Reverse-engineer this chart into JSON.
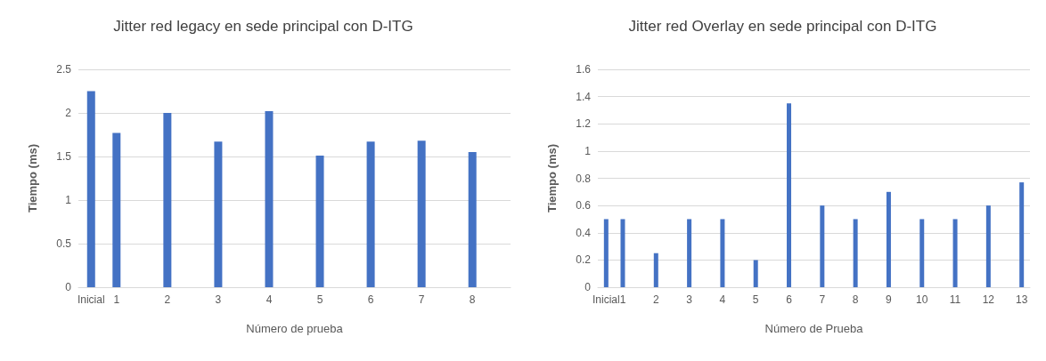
{
  "chart_data": [
    {
      "type": "bar",
      "title": "Jitter red legacy en sede principal con D-ITG",
      "xlabel": "Número de prueba",
      "ylabel": "Tiempo (ms)",
      "x": [
        0.5,
        1,
        2,
        3,
        4,
        5,
        6,
        7,
        8
      ],
      "xlim": [
        0.25,
        8.75
      ],
      "xticks": [
        {
          "value": 0.5,
          "label": "Inicial"
        },
        1,
        2,
        3,
        4,
        5,
        6,
        7,
        8
      ],
      "series": [
        {
          "color": "#4472c4",
          "values": [
            2.25,
            1.77,
            2.0,
            1.67,
            2.02,
            1.51,
            1.67,
            1.68,
            1.55
          ]
        }
      ],
      "ylim": [
        0,
        2.5
      ],
      "yticks": [
        0,
        0.5,
        1,
        1.5,
        2,
        2.5
      ],
      "grid": "y"
    },
    {
      "type": "bar",
      "title": "Jitter red Overlay en sede principal con D-ITG",
      "xlabel": "Número de Prueba",
      "ylabel": "Tiempo (ms)",
      "x": [
        0.5,
        1,
        2,
        3,
        4,
        5,
        6,
        7,
        8,
        9,
        10,
        11,
        12,
        13
      ],
      "xlim": [
        0.25,
        13.25
      ],
      "xticks": [
        {
          "value": 0.5,
          "label": "Inicial"
        },
        1,
        2,
        3,
        4,
        5,
        6,
        7,
        8,
        9,
        10,
        11,
        12,
        13
      ],
      "series": [
        {
          "color": "#4472c4",
          "values": [
            0.5,
            0.5,
            0.25,
            0.5,
            0.5,
            0.2,
            1.35,
            0.6,
            0.5,
            0.7,
            0.5,
            0.5,
            0.6,
            0.77
          ]
        }
      ],
      "ylim": [
        0,
        1.6
      ],
      "yticks": [
        0,
        0.2,
        0.4,
        0.6,
        0.8,
        1,
        1.2,
        1.4,
        1.6
      ],
      "grid": "y"
    }
  ]
}
